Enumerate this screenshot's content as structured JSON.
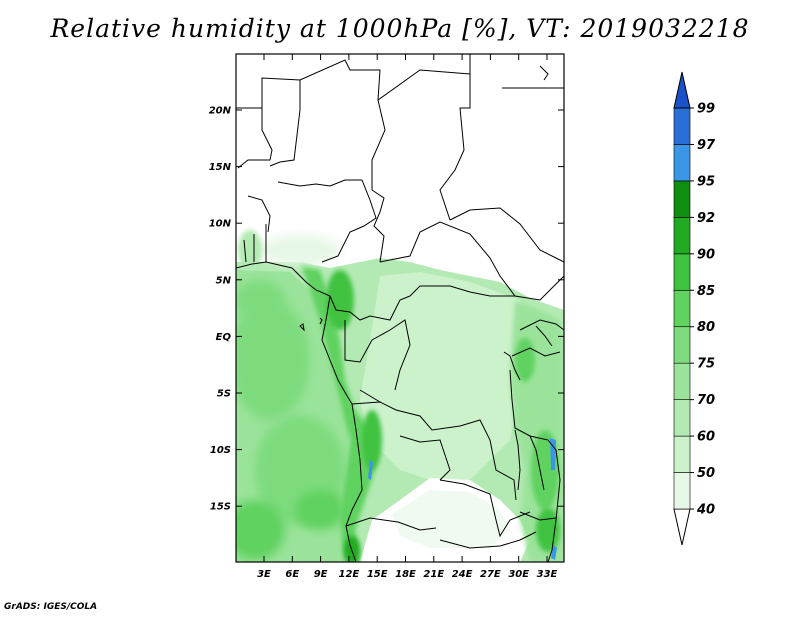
{
  "title": "Relative humidity at 1000hPa [%], VT: 2019032218",
  "footer": "GrADS: IGES/COLA",
  "lon_ticks": [
    "3E",
    "6E",
    "9E",
    "12E",
    "15E",
    "18E",
    "21E",
    "24E",
    "27E",
    "30E",
    "33E"
  ],
  "lat_ticks": [
    "20N",
    "15N",
    "10N",
    "5N",
    "EQ",
    "5S",
    "10S",
    "15S"
  ],
  "colorbar": {
    "levels": [
      "40",
      "50",
      "60",
      "70",
      "75",
      "80",
      "85",
      "90",
      "92",
      "95",
      "97",
      "99"
    ],
    "colors": [
      "#ffffff",
      "#e6f7e6",
      "#ccf2cc",
      "#b3eab3",
      "#9be39b",
      "#7ddb7d",
      "#5fd25f",
      "#3fc23f",
      "#22ab22",
      "#0f8f0f",
      "#3c96e6",
      "#2a6fd6",
      "#1a50c8"
    ]
  }
}
